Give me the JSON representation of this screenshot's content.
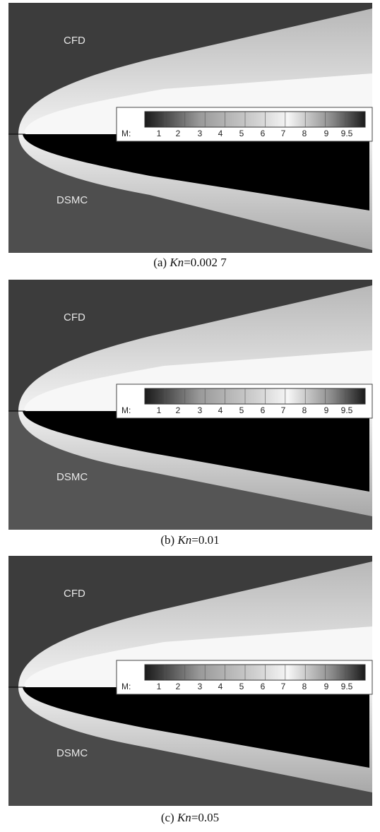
{
  "panels": [
    {
      "caption": {
        "prefix": "(a) ",
        "variable": "Kn",
        "value": "=0.002 7"
      },
      "top_label": "CFD",
      "bottom_label": "DSMC",
      "legend": {
        "label": "M:",
        "ticks": [
          "1",
          "2",
          "3",
          "4",
          "5",
          "6",
          "7",
          "8",
          "9",
          "9.5"
        ]
      }
    },
    {
      "caption": {
        "prefix": "(b) ",
        "variable": "Kn",
        "value": "=0.01"
      },
      "top_label": "CFD",
      "bottom_label": "DSMC",
      "legend": {
        "label": "M:",
        "ticks": [
          "1",
          "2",
          "3",
          "4",
          "5",
          "6",
          "7",
          "8",
          "9",
          "9.5"
        ]
      }
    },
    {
      "caption": {
        "prefix": "(c) ",
        "variable": "Kn",
        "value": "=0.05"
      },
      "top_label": "CFD",
      "bottom_label": "DSMC",
      "legend": {
        "label": "M:",
        "ticks": [
          "1",
          "2",
          "3",
          "4",
          "5",
          "6",
          "7",
          "8",
          "9",
          "9.5"
        ]
      }
    }
  ]
}
